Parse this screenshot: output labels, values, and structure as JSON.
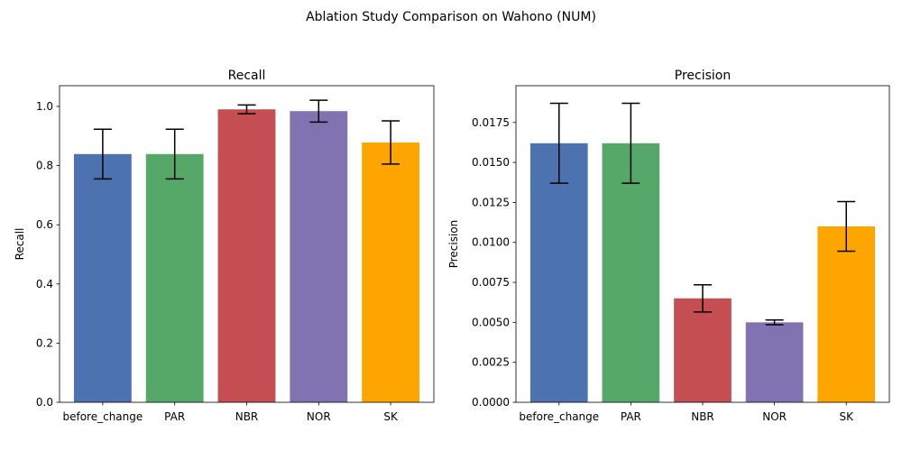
{
  "figure": {
    "suptitle": "Ablation Study Comparison on Wahono (NUM)"
  },
  "chart_data": [
    {
      "type": "bar",
      "title": "Recall",
      "xlabel": "",
      "ylabel": "Recall",
      "categories": [
        "before_change",
        "PAR",
        "NBR",
        "NOR",
        "SK"
      ],
      "values": [
        0.839,
        0.839,
        0.99,
        0.984,
        0.878
      ],
      "errors": [
        0.084,
        0.084,
        0.015,
        0.037,
        0.073
      ],
      "colors": [
        "#4c72b0",
        "#55a868",
        "#c44e52",
        "#8172b2",
        "#ffa500"
      ],
      "ylim": [
        0,
        1.07
      ],
      "yticks": [
        0.0,
        0.2,
        0.4,
        0.6,
        0.8,
        1.0
      ],
      "ytick_labels": [
        "0.0",
        "0.2",
        "0.4",
        "0.6",
        "0.8",
        "1.0"
      ],
      "grid": false
    },
    {
      "type": "bar",
      "title": "Precision",
      "xlabel": "",
      "ylabel": "Precision",
      "categories": [
        "before_change",
        "PAR",
        "NBR",
        "NOR",
        "SK"
      ],
      "values": [
        0.0162,
        0.0162,
        0.0065,
        0.005,
        0.011
      ],
      "errors": [
        0.0025,
        0.0025,
        0.00085,
        0.00015,
        0.00155
      ],
      "colors": [
        "#4c72b0",
        "#55a868",
        "#c44e52",
        "#8172b2",
        "#ffa500"
      ],
      "ylim": [
        0,
        0.0198
      ],
      "yticks": [
        0.0,
        0.0025,
        0.005,
        0.0075,
        0.01,
        0.0125,
        0.015,
        0.0175
      ],
      "ytick_labels": [
        "0.0000",
        "0.0025",
        "0.0050",
        "0.0075",
        "0.0100",
        "0.0125",
        "0.0150",
        "0.0175"
      ],
      "grid": false
    }
  ]
}
